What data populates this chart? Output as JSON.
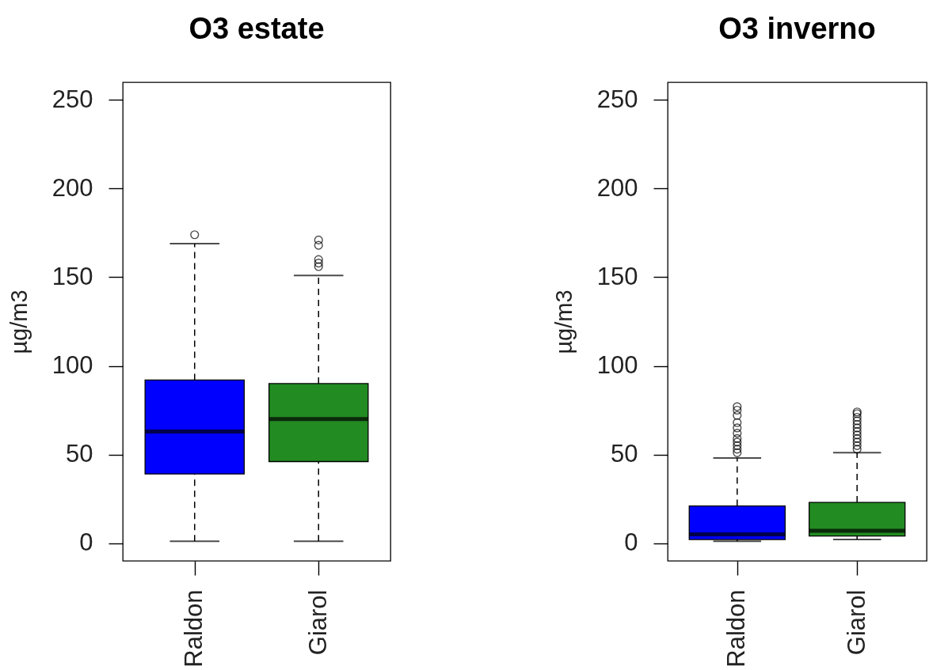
{
  "chart_data": [
    {
      "type": "box",
      "title": "O3 estate",
      "ylabel": "µg/m3",
      "categories": [
        "Raldon",
        "Giarol"
      ],
      "colors": [
        "#0000ff",
        "#228b22"
      ],
      "boxes": [
        {
          "low": 1,
          "q1": 39,
          "median": 63,
          "q3": 92,
          "high": 169,
          "outliers": [
            174
          ]
        },
        {
          "low": 1,
          "q1": 46,
          "median": 70,
          "q3": 90,
          "high": 151,
          "outliers": [
            156,
            158,
            160,
            168,
            171
          ]
        }
      ],
      "ylim": [
        -10,
        260
      ],
      "yticks": [
        0,
        50,
        100,
        150,
        200,
        250
      ]
    },
    {
      "type": "box",
      "title": "O3 inverno",
      "ylabel": "µg/m3",
      "categories": [
        "Raldon",
        "Giarol"
      ],
      "colors": [
        "#0000ff",
        "#228b22"
      ],
      "boxes": [
        {
          "low": 1,
          "q1": 2,
          "median": 5,
          "q3": 21,
          "high": 48,
          "outliers": [
            51,
            53,
            55,
            57,
            59,
            62,
            65,
            68,
            72,
            75,
            77
          ]
        },
        {
          "low": 2,
          "q1": 4,
          "median": 7,
          "q3": 23,
          "high": 51,
          "outliers": [
            53,
            55,
            57,
            59,
            61,
            63,
            65,
            67,
            69,
            71,
            73,
            74
          ]
        }
      ],
      "ylim": [
        -10,
        260
      ],
      "yticks": [
        0,
        50,
        100,
        150,
        200,
        250
      ]
    }
  ]
}
